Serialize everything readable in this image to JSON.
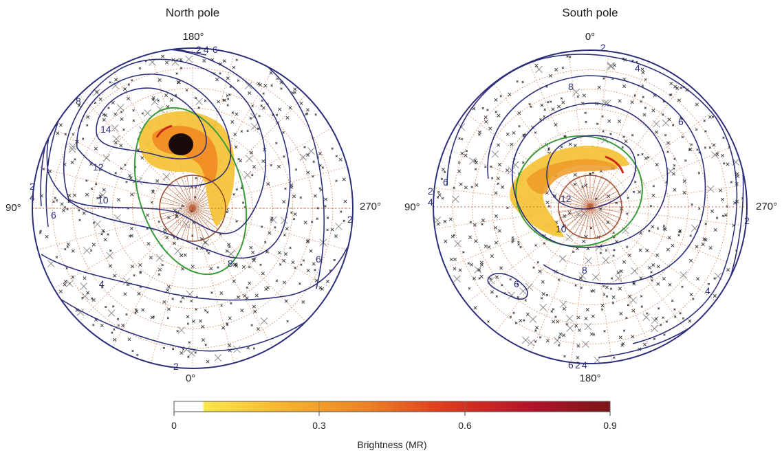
{
  "chart_data": [
    {
      "type": "polar-map",
      "title": "North pole",
      "longitude_labels": {
        "top": "180°",
        "bottom": "0°",
        "left": "90°",
        "right": "270°"
      },
      "contour_levels": [
        "2",
        "4",
        "6",
        "8",
        "10",
        "12",
        "14"
      ],
      "contour_color": "#2c2e7a",
      "grid_color": "#c0643c",
      "oval_color": "#3a9a3a",
      "colatitude_ring_color": "#9a4a2a"
    },
    {
      "type": "polar-map",
      "title": "South pole",
      "longitude_labels": {
        "top": "0°",
        "bottom": "180°",
        "left": "90°",
        "right": "270°"
      },
      "contour_levels": [
        "2",
        "4",
        "6",
        "8",
        "10",
        "12"
      ],
      "contour_color": "#2c2e7a",
      "grid_color": "#c0643c",
      "oval_color": "#3a9a3a",
      "colatitude_ring_color": "#9a4a2a"
    }
  ],
  "colorbar": {
    "label": "Brightness (MR)",
    "ticks": [
      "0",
      "0.3",
      "0.6",
      "0.9"
    ],
    "range": [
      0,
      0.9
    ],
    "colors": [
      "#ffffff",
      "#fbe64a",
      "#f5b52e",
      "#ec7f24",
      "#de3a1f",
      "#b3122a",
      "#7a1616"
    ]
  }
}
